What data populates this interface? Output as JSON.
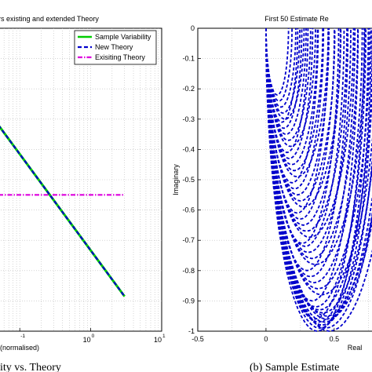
{
  "chart_data": [
    {
      "type": "line",
      "title": "rs existing and extended Theory",
      "xlabel": "(normalised)",
      "ylabel": "",
      "caption": "ity vs. Theory",
      "x_scale": "log",
      "xlim": [
        0.05,
        10
      ],
      "x_ticks": [
        {
          "value": 0.1,
          "base": "",
          "exp": "-1"
        },
        {
          "value": 1,
          "base": "10",
          "exp": "0"
        },
        {
          "value": 10,
          "base": "10",
          "exp": "1"
        }
      ],
      "grid": true,
      "legend_position": "top-right",
      "series": [
        {
          "name": "Sample Variability",
          "color": "#00cc00",
          "style": "solid",
          "x": [
            0.05,
            3
          ],
          "y": [
            0.32,
            0.885
          ]
        },
        {
          "name": "New Theory",
          "color": "#0000cc",
          "style": "dashed",
          "x": [
            0.05,
            3
          ],
          "y": [
            0.32,
            0.885
          ]
        },
        {
          "name": "Exisiting Theory",
          "color": "#dd00dd",
          "style": "dashdot",
          "x": [
            0.05,
            3
          ],
          "y": [
            0.55,
            0.55
          ]
        }
      ]
    },
    {
      "type": "line",
      "title": "First 50 Estimate Re",
      "xlabel": "Real",
      "ylabel": "Imaginary",
      "caption": "(b)  Sample Estimate",
      "xlim": [
        -0.5,
        0.8
      ],
      "ylim": [
        -1,
        0
      ],
      "x_ticks": [
        "-0.5",
        "0",
        "0.5"
      ],
      "y_ticks": [
        "0",
        "-0.1",
        "-0.2",
        "-0.3",
        "-0.4",
        "-0.5",
        "-0.6",
        "-0.7",
        "-0.8",
        "-0.9",
        "-1"
      ],
      "grid": true,
      "series_color": "#0000cc",
      "curve_count": 50,
      "curve_min_imag": [
        -0.22,
        -0.24,
        -0.26,
        -0.28,
        -0.3,
        -0.31,
        -0.33,
        -0.35,
        -0.37,
        -0.39,
        -0.41,
        -0.43,
        -0.45,
        -0.47,
        -0.49,
        -0.51,
        -0.53,
        -0.55,
        -0.57,
        -0.59,
        -0.61,
        -0.63,
        -0.65,
        -0.67,
        -0.69,
        -0.71,
        -0.72,
        -0.74,
        -0.76,
        -0.78,
        -0.8,
        -0.82,
        -0.84,
        -0.86,
        -0.88,
        -0.9,
        -0.92,
        -0.93,
        -0.94,
        -0.95,
        -0.96,
        -0.97,
        -0.98,
        -0.99,
        -1,
        -1,
        -0.99,
        -0.98,
        -0.97,
        -0.96
      ]
    }
  ]
}
